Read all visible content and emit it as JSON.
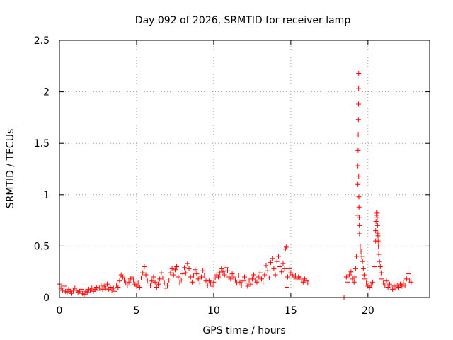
{
  "chart_data": {
    "type": "scatter",
    "title": "Day 092 of 2026, SRMTID for receiver lamp",
    "xlabel": "GPS time / hours",
    "ylabel": "SRMTID / TECUs",
    "xlim": [
      0,
      24
    ],
    "ylim": [
      0,
      2.5
    ],
    "x_ticks": [
      0,
      5,
      10,
      15,
      20
    ],
    "x_tick_labels": [
      "0",
      "5",
      "10",
      "15",
      "20"
    ],
    "y_ticks": [
      0,
      0.5,
      1,
      1.5,
      2,
      2.5
    ],
    "y_tick_labels": [
      "0",
      "0.5",
      "1",
      "1.5",
      "2",
      "2.5"
    ],
    "grid": true,
    "marker": "plus",
    "color": "#ff0000",
    "series": [
      {
        "name": "SRMTID",
        "points": [
          [
            0.0,
            0.13
          ],
          [
            0.1,
            0.09
          ],
          [
            0.2,
            0.07
          ],
          [
            0.3,
            0.11
          ],
          [
            0.4,
            0.06
          ],
          [
            0.5,
            0.05
          ],
          [
            0.6,
            0.08
          ],
          [
            0.7,
            0.06
          ],
          [
            0.8,
            0.04
          ],
          [
            0.9,
            0.07
          ],
          [
            1.0,
            0.09
          ],
          [
            1.1,
            0.07
          ],
          [
            1.2,
            0.05
          ],
          [
            1.3,
            0.06
          ],
          [
            1.4,
            0.08
          ],
          [
            1.5,
            0.04
          ],
          [
            1.6,
            0.03
          ],
          [
            1.7,
            0.06
          ],
          [
            1.8,
            0.05
          ],
          [
            1.9,
            0.08
          ],
          [
            2.0,
            0.07
          ],
          [
            2.1,
            0.09
          ],
          [
            2.2,
            0.06
          ],
          [
            2.3,
            0.08
          ],
          [
            2.4,
            0.1
          ],
          [
            2.5,
            0.07
          ],
          [
            2.6,
            0.09
          ],
          [
            2.7,
            0.12
          ],
          [
            2.8,
            0.08
          ],
          [
            2.9,
            0.11
          ],
          [
            3.0,
            0.09
          ],
          [
            3.1,
            0.13
          ],
          [
            3.2,
            0.08
          ],
          [
            3.3,
            0.1
          ],
          [
            3.4,
            0.07
          ],
          [
            3.5,
            0.09
          ],
          [
            3.6,
            0.06
          ],
          [
            3.7,
            0.12
          ],
          [
            3.8,
            0.1
          ],
          [
            3.9,
            0.16
          ],
          [
            4.0,
            0.22
          ],
          [
            4.1,
            0.2
          ],
          [
            4.2,
            0.17
          ],
          [
            4.3,
            0.14
          ],
          [
            4.4,
            0.12
          ],
          [
            4.5,
            0.15
          ],
          [
            4.6,
            0.18
          ],
          [
            4.7,
            0.2
          ],
          [
            4.8,
            0.17
          ],
          [
            4.9,
            0.13
          ],
          [
            5.0,
            0.11
          ],
          [
            5.1,
            0.14
          ],
          [
            5.2,
            0.1
          ],
          [
            5.3,
            0.19
          ],
          [
            5.4,
            0.24
          ],
          [
            5.5,
            0.3
          ],
          [
            5.6,
            0.22
          ],
          [
            5.7,
            0.17
          ],
          [
            5.8,
            0.14
          ],
          [
            5.9,
            0.12
          ],
          [
            6.0,
            0.16
          ],
          [
            6.1,
            0.2
          ],
          [
            6.2,
            0.15
          ],
          [
            6.3,
            0.1
          ],
          [
            6.4,
            0.13
          ],
          [
            6.5,
            0.18
          ],
          [
            6.6,
            0.24
          ],
          [
            6.7,
            0.19
          ],
          [
            6.8,
            0.14
          ],
          [
            6.9,
            0.09
          ],
          [
            7.0,
            0.12
          ],
          [
            7.1,
            0.17
          ],
          [
            7.2,
            0.24
          ],
          [
            7.3,
            0.28
          ],
          [
            7.4,
            0.22
          ],
          [
            7.5,
            0.27
          ],
          [
            7.6,
            0.3
          ],
          [
            7.7,
            0.2
          ],
          [
            7.8,
            0.14
          ],
          [
            7.9,
            0.17
          ],
          [
            8.0,
            0.23
          ],
          [
            8.1,
            0.29
          ],
          [
            8.2,
            0.24
          ],
          [
            8.3,
            0.33
          ],
          [
            8.4,
            0.28
          ],
          [
            8.5,
            0.2
          ],
          [
            8.6,
            0.15
          ],
          [
            8.7,
            0.21
          ],
          [
            8.8,
            0.27
          ],
          [
            8.9,
            0.23
          ],
          [
            9.0,
            0.18
          ],
          [
            9.1,
            0.14
          ],
          [
            9.2,
            0.2
          ],
          [
            9.3,
            0.26
          ],
          [
            9.4,
            0.21
          ],
          [
            9.5,
            0.16
          ],
          [
            9.6,
            0.12
          ],
          [
            9.7,
            0.16
          ],
          [
            9.8,
            0.14
          ],
          [
            9.9,
            0.11
          ],
          [
            10.0,
            0.15
          ],
          [
            10.1,
            0.19
          ],
          [
            10.2,
            0.22
          ],
          [
            10.3,
            0.2
          ],
          [
            10.4,
            0.24
          ],
          [
            10.5,
            0.28
          ],
          [
            10.6,
            0.25
          ],
          [
            10.7,
            0.22
          ],
          [
            10.8,
            0.29
          ],
          [
            10.9,
            0.26
          ],
          [
            11.0,
            0.2
          ],
          [
            11.1,
            0.18
          ],
          [
            11.2,
            0.23
          ],
          [
            11.3,
            0.2
          ],
          [
            11.4,
            0.17
          ],
          [
            11.5,
            0.14
          ],
          [
            11.6,
            0.21
          ],
          [
            11.7,
            0.15
          ],
          [
            11.8,
            0.12
          ],
          [
            11.9,
            0.16
          ],
          [
            12.0,
            0.2
          ],
          [
            12.1,
            0.14
          ],
          [
            12.2,
            0.11
          ],
          [
            12.3,
            0.17
          ],
          [
            12.4,
            0.13
          ],
          [
            12.5,
            0.18
          ],
          [
            12.6,
            0.22
          ],
          [
            12.7,
            0.17
          ],
          [
            12.8,
            0.15
          ],
          [
            12.9,
            0.2
          ],
          [
            13.0,
            0.24
          ],
          [
            13.1,
            0.18
          ],
          [
            13.2,
            0.14
          ],
          [
            13.3,
            0.22
          ],
          [
            13.4,
            0.31
          ],
          [
            13.5,
            0.26
          ],
          [
            13.6,
            0.19
          ],
          [
            13.7,
            0.34
          ],
          [
            13.8,
            0.38
          ],
          [
            13.9,
            0.28
          ],
          [
            14.0,
            0.22
          ],
          [
            14.1,
            0.35
          ],
          [
            14.2,
            0.4
          ],
          [
            14.3,
            0.3
          ],
          [
            14.4,
            0.25
          ],
          [
            14.5,
            0.33
          ],
          [
            14.6,
            0.28
          ],
          [
            14.65,
            0.47
          ],
          [
            14.7,
            0.49
          ],
          [
            14.75,
            0.1
          ],
          [
            14.8,
            0.2
          ],
          [
            14.9,
            0.28
          ],
          [
            15.0,
            0.24
          ],
          [
            15.1,
            0.22
          ],
          [
            15.2,
            0.2
          ],
          [
            15.3,
            0.21
          ],
          [
            15.4,
            0.18
          ],
          [
            15.5,
            0.2
          ],
          [
            15.6,
            0.19
          ],
          [
            15.7,
            0.17
          ],
          [
            15.8,
            0.15
          ],
          [
            15.9,
            0.18
          ],
          [
            16.0,
            0.16
          ],
          [
            16.1,
            0.14
          ],
          [
            18.45,
            0.0
          ],
          [
            18.6,
            0.2
          ],
          [
            18.7,
            0.15
          ],
          [
            18.8,
            0.22
          ],
          [
            18.9,
            0.25
          ],
          [
            19.0,
            0.18
          ],
          [
            19.1,
            0.15
          ],
          [
            19.15,
            0.2
          ],
          [
            19.2,
            0.28
          ],
          [
            19.25,
            0.4
          ],
          [
            19.3,
            0.8
          ],
          [
            19.35,
            1.1
          ],
          [
            19.4,
            2.18
          ],
          [
            19.45,
            0.62
          ],
          [
            19.5,
            0.5
          ],
          [
            19.55,
            0.45
          ],
          [
            19.6,
            0.4
          ],
          [
            19.65,
            0.35
          ],
          [
            19.7,
            0.28
          ],
          [
            19.75,
            0.22
          ],
          [
            19.8,
            0.18
          ],
          [
            19.9,
            0.14
          ],
          [
            20.0,
            0.11
          ],
          [
            20.1,
            0.1
          ],
          [
            20.2,
            0.12
          ],
          [
            20.3,
            0.15
          ],
          [
            20.4,
            0.3
          ],
          [
            20.5,
            0.55
          ],
          [
            20.55,
            0.83
          ],
          [
            20.6,
            0.82
          ],
          [
            20.65,
            0.6
          ],
          [
            20.7,
            0.42
          ],
          [
            20.75,
            0.35
          ],
          [
            20.8,
            0.3
          ],
          [
            20.85,
            0.24
          ],
          [
            20.9,
            0.18
          ],
          [
            21.0,
            0.14
          ],
          [
            21.1,
            0.12
          ],
          [
            21.2,
            0.16
          ],
          [
            21.3,
            0.1
          ],
          [
            21.4,
            0.13
          ],
          [
            21.5,
            0.12
          ],
          [
            21.6,
            0.08
          ],
          [
            21.7,
            0.11
          ],
          [
            21.8,
            0.09
          ],
          [
            21.9,
            0.12
          ],
          [
            22.0,
            0.1
          ],
          [
            22.1,
            0.13
          ],
          [
            22.2,
            0.11
          ],
          [
            22.3,
            0.14
          ],
          [
            22.4,
            0.12
          ],
          [
            22.5,
            0.18
          ],
          [
            22.6,
            0.23
          ],
          [
            22.7,
            0.17
          ],
          [
            22.8,
            0.15
          ]
        ],
        "spike_rise": [
          [
            19.35,
            1.28
          ],
          [
            19.36,
            1.43
          ],
          [
            19.37,
            1.58
          ],
          [
            19.38,
            1.73
          ],
          [
            19.39,
            1.88
          ],
          [
            19.395,
            2.03
          ],
          [
            19.4,
            1.18
          ],
          [
            19.41,
            0.98
          ],
          [
            19.42,
            0.88
          ],
          [
            19.43,
            0.78
          ],
          [
            19.44,
            0.7
          ]
        ],
        "spike_second": [
          [
            20.5,
            0.65
          ],
          [
            20.52,
            0.74
          ],
          [
            20.55,
            0.8
          ],
          [
            20.6,
            0.78
          ],
          [
            20.62,
            0.7
          ],
          [
            20.64,
            0.62
          ],
          [
            20.66,
            0.55
          ],
          [
            20.68,
            0.5
          ]
        ]
      }
    ]
  }
}
